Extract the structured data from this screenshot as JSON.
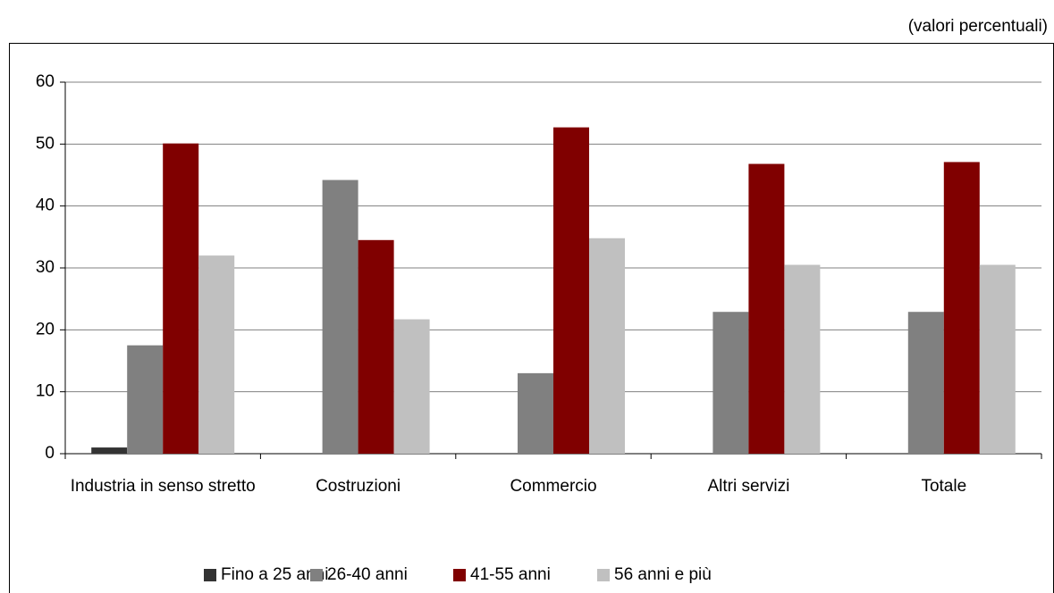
{
  "chart_data": {
    "type": "bar",
    "subtitle": "(valori percentuali)",
    "categories": [
      "Industria in senso stretto",
      "Costruzioni",
      "Commercio",
      "Altri servizi",
      "Totale"
    ],
    "series": [
      {
        "name": "Fino a 25 anni",
        "color": "#333333",
        "values": [
          1,
          0,
          0,
          0,
          0
        ]
      },
      {
        "name": "26-40 anni",
        "color": "#808080",
        "values": [
          17.5,
          44.2,
          13,
          22.9,
          22.9
        ]
      },
      {
        "name": "41-55 anni",
        "color": "#800000",
        "values": [
          50.1,
          34.5,
          52.7,
          46.8,
          47.1
        ]
      },
      {
        "name": "56 anni e più",
        "color": "#c0c0c0",
        "values": [
          32,
          21.7,
          34.8,
          30.5,
          30.5
        ]
      }
    ],
    "ylim": [
      0,
      60
    ],
    "yticks": [
      0,
      10,
      20,
      30,
      40,
      50,
      60
    ],
    "grid": true,
    "legend": "bottom"
  }
}
